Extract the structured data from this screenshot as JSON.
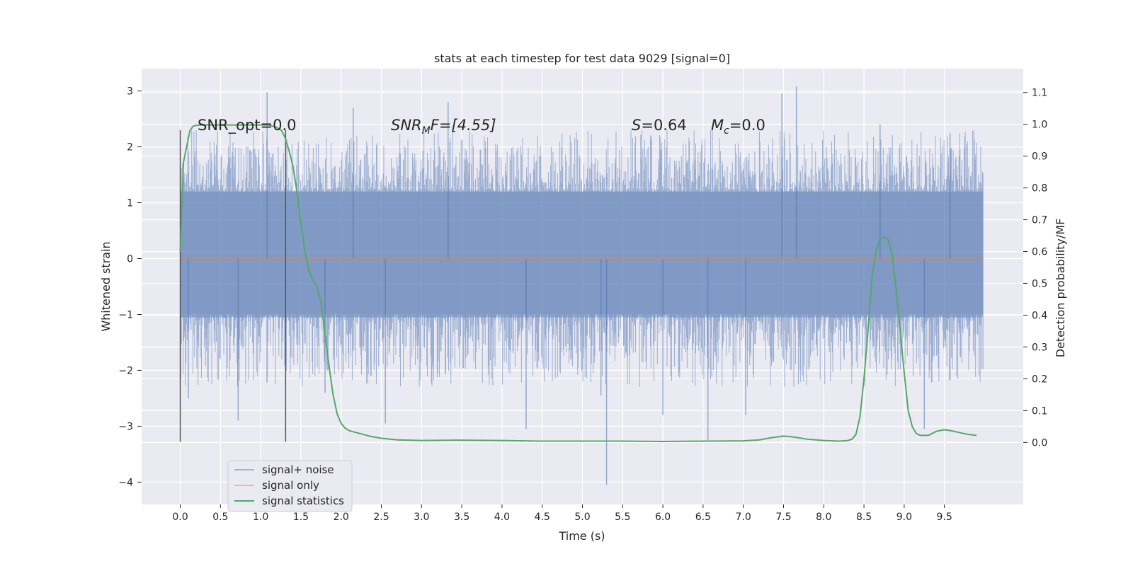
{
  "chart_data": {
    "type": "line",
    "title": "stats at each timestep for test data 9029 [signal=0]",
    "xlabel": "Time (s)",
    "ylabel": "Whitened strain",
    "y2label": "Detection probability/MF",
    "xlim": [
      -0.48,
      10.48
    ],
    "ylim": [
      -4.4,
      3.4
    ],
    "y2lim": [
      -0.195,
      1.175
    ],
    "x_ticks": [
      0.0,
      0.5,
      1.0,
      1.5,
      2.0,
      2.5,
      3.0,
      3.5,
      4.0,
      4.5,
      5.0,
      5.5,
      6.0,
      6.5,
      7.0,
      7.5,
      8.0,
      8.5,
      9.0,
      9.5
    ],
    "x_tick_labels": [
      "0.0",
      "0.5",
      "1.0",
      "1.5",
      "2.0",
      "2.5",
      "3.0",
      "3.5",
      "4.0",
      "4.5",
      "5.0",
      "5.5",
      "6.0",
      "6.5",
      "7.0",
      "7.5",
      "8.0",
      "8.5",
      "9.0",
      "9.5"
    ],
    "y_ticks": [
      3,
      2,
      1,
      0,
      -1,
      -2,
      -3,
      -4
    ],
    "y_tick_labels": [
      "3",
      "2",
      "1",
      "0",
      "−1",
      "−2",
      "−3",
      "−4"
    ],
    "y2_ticks": [
      1.1,
      1.0,
      0.9,
      0.8,
      0.7,
      0.6,
      0.5,
      0.4,
      0.3,
      0.2,
      0.1,
      0.0
    ],
    "y2_tick_labels": [
      "1.1",
      "1.0",
      "0.9",
      "0.8",
      "0.7",
      "0.6",
      "0.5",
      "0.4",
      "0.3",
      "0.2",
      "0.1",
      "0.0"
    ],
    "grid": true,
    "legend_position": "lower-left",
    "background": "#eaeaf2",
    "annotations": {
      "snr_opt": "SNR_opt=0.0",
      "snr_mf_base": "SNR",
      "snr_mf_sub": "M",
      "snr_mf_rest": "F=[4.55]",
      "s_label": "S",
      "s_value": "=0.64",
      "mc_label": "M",
      "mc_sub": "c",
      "mc_value": "=0.0"
    },
    "vertical_lines": {
      "x": [
        0.0,
        1.31
      ],
      "y_range": [
        -3.28,
        2.3
      ],
      "color": "#555555"
    },
    "series": [
      {
        "name": "signal+ noise",
        "color": "#4c72b0",
        "x_range": [
          0.0,
          9.98
        ],
        "amplitude_description": "dense noise band",
        "typical_range": [
          -1.5,
          1.5
        ],
        "peaks": [
          {
            "x": 1.08,
            "y": 2.98
          },
          {
            "x": 7.66,
            "y": 3.08
          },
          {
            "x": 7.48,
            "y": 2.95
          },
          {
            "x": 2.15,
            "y": 2.7
          },
          {
            "x": 5.3,
            "y": -4.05
          },
          {
            "x": 6.56,
            "y": -3.25
          },
          {
            "x": 2.55,
            "y": -2.95
          },
          {
            "x": 4.3,
            "y": -3.05
          },
          {
            "x": 7.03,
            "y": -2.8
          },
          {
            "x": 9.25,
            "y": -3.05
          },
          {
            "x": 5.23,
            "y": -2.45
          },
          {
            "x": 0.72,
            "y": -2.9
          },
          {
            "x": 1.8,
            "y": -2.4
          },
          {
            "x": 3.33,
            "y": 2.8
          },
          {
            "x": 8.7,
            "y": 2.4
          },
          {
            "x": 9.57,
            "y": 2.25
          },
          {
            "x": 0.1,
            "y": -2.5
          },
          {
            "x": 6.0,
            "y": -2.8
          }
        ]
      },
      {
        "name": "signal only",
        "color": "#dd8452",
        "x": [
          0.0,
          9.98
        ],
        "y": [
          0.0,
          0.0
        ]
      },
      {
        "name": "signal statistics",
        "color": "#55a868",
        "axis": "right",
        "x": [
          0.0,
          0.04,
          0.08,
          0.12,
          0.16,
          0.2,
          0.3,
          0.5,
          0.8,
          1.0,
          1.1,
          1.2,
          1.26,
          1.3,
          1.35,
          1.4,
          1.45,
          1.5,
          1.55,
          1.6,
          1.65,
          1.7,
          1.75,
          1.8,
          1.85,
          1.9,
          1.95,
          2.0,
          2.05,
          2.1,
          2.2,
          2.35,
          2.5,
          2.7,
          3.0,
          3.4,
          4.0,
          4.5,
          5.0,
          5.5,
          6.0,
          6.5,
          7.0,
          7.2,
          7.35,
          7.5,
          7.6,
          7.8,
          8.0,
          8.2,
          8.3,
          8.35,
          8.4,
          8.45,
          8.5,
          8.55,
          8.6,
          8.65,
          8.7,
          8.75,
          8.8,
          8.85,
          8.9,
          8.95,
          9.0,
          9.05,
          9.1,
          9.15,
          9.2,
          9.3,
          9.4,
          9.5,
          9.6,
          9.7,
          9.8,
          9.9
        ],
        "y": [
          0.6,
          0.88,
          0.93,
          0.98,
          0.994,
          0.997,
          0.998,
          0.998,
          0.998,
          0.998,
          0.998,
          0.99,
          0.98,
          0.96,
          0.92,
          0.87,
          0.79,
          0.69,
          0.6,
          0.54,
          0.51,
          0.49,
          0.44,
          0.34,
          0.24,
          0.15,
          0.09,
          0.06,
          0.045,
          0.037,
          0.03,
          0.02,
          0.013,
          0.008,
          0.006,
          0.007,
          0.006,
          0.004,
          0.004,
          0.004,
          0.003,
          0.004,
          0.005,
          0.008,
          0.015,
          0.02,
          0.018,
          0.01,
          0.006,
          0.004,
          0.006,
          0.01,
          0.025,
          0.08,
          0.2,
          0.35,
          0.52,
          0.6,
          0.64,
          0.645,
          0.64,
          0.59,
          0.48,
          0.35,
          0.22,
          0.1,
          0.05,
          0.028,
          0.022,
          0.022,
          0.035,
          0.04,
          0.036,
          0.03,
          0.025,
          0.022
        ]
      }
    ]
  }
}
